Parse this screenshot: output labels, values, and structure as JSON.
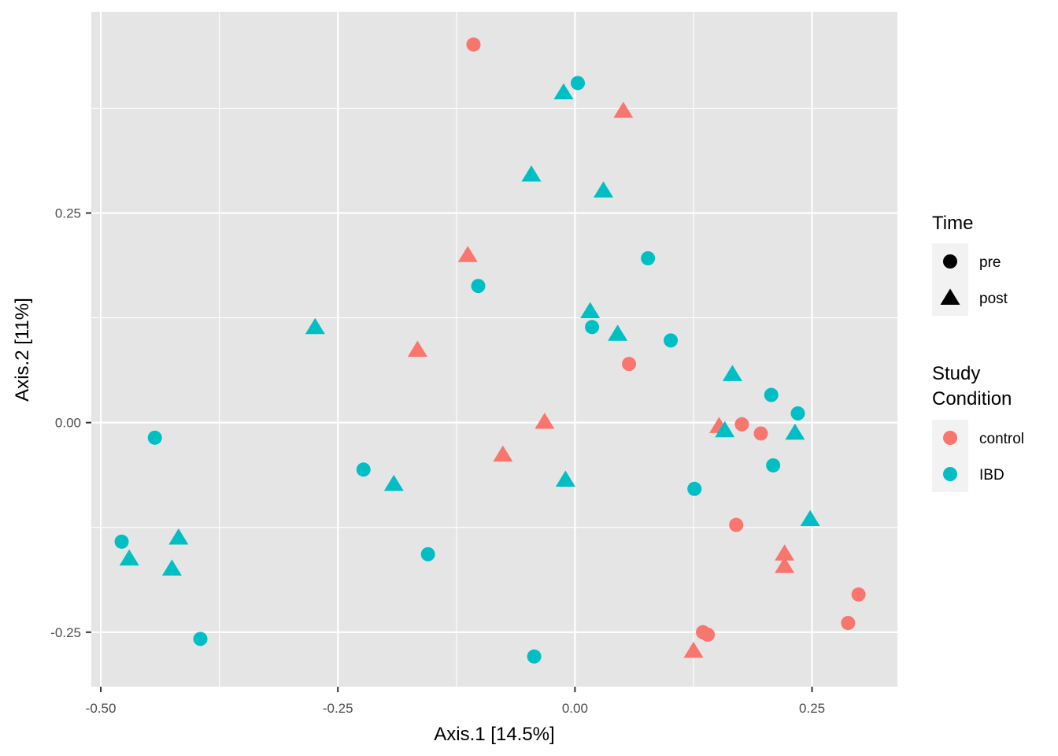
{
  "chart_data": {
    "type": "scatter",
    "xlabel": "Axis.1   [14.5%]",
    "ylabel": "Axis.2   [11%]",
    "xlim": [
      -0.51,
      0.34
    ],
    "ylim": [
      -0.315,
      0.49
    ],
    "x_ticks": [
      -0.5,
      -0.25,
      0.0,
      0.25
    ],
    "x_tick_labels": [
      "-0.50",
      "-0.25",
      "0.00",
      "0.25"
    ],
    "y_ticks": [
      -0.25,
      0.0,
      0.25
    ],
    "y_tick_labels": [
      "-0.25",
      "0.00",
      "0.25"
    ],
    "grid": true,
    "background": "#e5e5e5",
    "legend_position": "right",
    "legends": [
      {
        "title": "Time",
        "entries": [
          {
            "label": "pre",
            "shape": "circle"
          },
          {
            "label": "post",
            "shape": "triangle"
          }
        ]
      },
      {
        "title": "Study\nCondition",
        "entries": [
          {
            "label": "control",
            "color": "#F8766D"
          },
          {
            "label": "IBD",
            "color": "#00BFC4"
          }
        ]
      }
    ],
    "colors": {
      "control": "#F8766D",
      "IBD": "#00BFC4"
    },
    "series": [
      {
        "condition": "control",
        "time": "pre",
        "points": [
          [
            -0.107,
            0.451
          ],
          [
            0.057,
            0.07
          ],
          [
            0.176,
            -0.002
          ],
          [
            0.196,
            -0.013
          ],
          [
            0.17,
            -0.122
          ],
          [
            0.135,
            -0.25
          ],
          [
            0.14,
            -0.253
          ],
          [
            0.288,
            -0.239
          ],
          [
            0.299,
            -0.205
          ]
        ]
      },
      {
        "condition": "control",
        "time": "post",
        "points": [
          [
            0.051,
            0.372
          ],
          [
            -0.113,
            0.2
          ],
          [
            -0.166,
            0.087
          ],
          [
            -0.032,
            0.001
          ],
          [
            -0.076,
            -0.038
          ],
          [
            0.152,
            -0.004
          ],
          [
            0.221,
            -0.156
          ],
          [
            0.221,
            -0.171
          ],
          [
            0.125,
            -0.272
          ]
        ]
      },
      {
        "condition": "IBD",
        "time": "pre",
        "points": [
          [
            0.003,
            0.405
          ],
          [
            0.077,
            0.196
          ],
          [
            -0.102,
            0.163
          ],
          [
            0.018,
            0.114
          ],
          [
            0.101,
            0.098
          ],
          [
            0.207,
            0.033
          ],
          [
            0.235,
            0.011
          ],
          [
            0.209,
            -0.051
          ],
          [
            0.126,
            -0.079
          ],
          [
            -0.223,
            -0.056
          ],
          [
            -0.443,
            -0.018
          ],
          [
            -0.478,
            -0.142
          ],
          [
            -0.155,
            -0.157
          ],
          [
            -0.395,
            -0.258
          ],
          [
            -0.043,
            -0.279
          ]
        ]
      },
      {
        "condition": "IBD",
        "time": "post",
        "points": [
          [
            -0.012,
            0.394
          ],
          [
            -0.046,
            0.296
          ],
          [
            0.03,
            0.277
          ],
          [
            0.016,
            0.133
          ],
          [
            0.045,
            0.106
          ],
          [
            0.166,
            0.058
          ],
          [
            0.158,
            -0.009
          ],
          [
            0.232,
            -0.012
          ],
          [
            -0.274,
            0.114
          ],
          [
            -0.191,
            -0.073
          ],
          [
            -0.01,
            -0.068
          ],
          [
            0.248,
            -0.115
          ],
          [
            -0.418,
            -0.137
          ],
          [
            -0.47,
            -0.162
          ],
          [
            -0.425,
            -0.174
          ]
        ]
      }
    ]
  }
}
